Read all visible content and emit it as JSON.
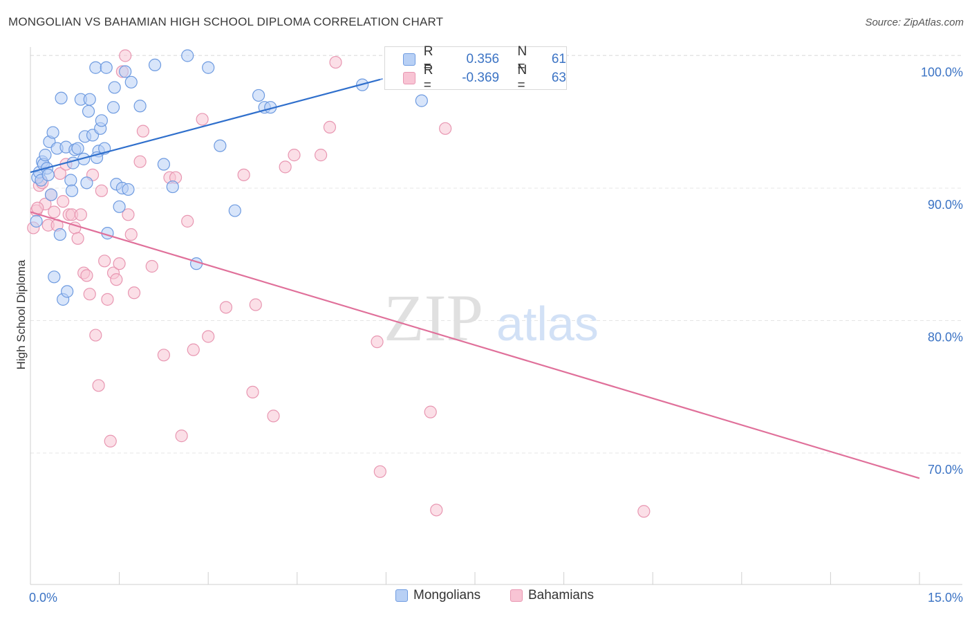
{
  "title": "MONGOLIAN VS BAHAMIAN HIGH SCHOOL DIPLOMA CORRELATION CHART",
  "source": "Source: ZipAtlas.com",
  "watermark": {
    "zip": "ZIP",
    "atlas": "atlas"
  },
  "colors": {
    "mongolians_fill": "#b8d0f5",
    "mongolians_stroke": "#6d9ae0",
    "mongolians_line": "#2f6fcc",
    "bahamians_fill": "#f8c4d4",
    "bahamians_stroke": "#e896b1",
    "bahamians_line": "#e0709a",
    "tick_label": "#3b73c4",
    "grid": "#e4e4e4"
  },
  "stats": {
    "r_label": "R =",
    "n_label": "N =",
    "mongolians": {
      "r": "0.356",
      "n": "61"
    },
    "bahamians": {
      "r": "-0.369",
      "n": "63"
    }
  },
  "chart_data": {
    "type": "scatter",
    "title": "MONGOLIAN VS BAHAMIAN HIGH SCHOOL DIPLOMA CORRELATION CHART",
    "xlabel": "",
    "ylabel": "High School Diploma",
    "xlim": [
      0,
      15
    ],
    "ylim": [
      62,
      101
    ],
    "x_tick_labels": [
      "0.0%",
      "15.0%"
    ],
    "y_ticks": [
      70,
      80,
      90,
      100
    ],
    "y_tick_labels": [
      "70.0%",
      "80.0%",
      "90.0%",
      "100.0%"
    ],
    "grid": true,
    "legend_position": "bottom-center",
    "series": [
      {
        "name": "Mongolians",
        "points": [
          [
            0.12,
            90.8
          ],
          [
            0.15,
            91.2
          ],
          [
            0.18,
            90.6
          ],
          [
            0.2,
            92.0
          ],
          [
            0.22,
            91.8
          ],
          [
            0.25,
            92.5
          ],
          [
            0.28,
            91.5
          ],
          [
            0.32,
            93.5
          ],
          [
            0.35,
            89.5
          ],
          [
            0.38,
            94.2
          ],
          [
            0.45,
            93.0
          ],
          [
            0.5,
            86.5
          ],
          [
            0.55,
            81.6
          ],
          [
            0.6,
            93.1
          ],
          [
            0.62,
            82.2
          ],
          [
            0.68,
            90.6
          ],
          [
            0.7,
            89.8
          ],
          [
            0.72,
            91.9
          ],
          [
            0.75,
            92.9
          ],
          [
            0.8,
            93.0
          ],
          [
            0.85,
            96.7
          ],
          [
            0.9,
            92.2
          ],
          [
            0.92,
            93.9
          ],
          [
            0.95,
            90.4
          ],
          [
            0.98,
            95.8
          ],
          [
            1.0,
            96.7
          ],
          [
            1.05,
            94.0
          ],
          [
            1.1,
            99.1
          ],
          [
            1.15,
            92.8
          ],
          [
            1.18,
            94.5
          ],
          [
            1.2,
            95.1
          ],
          [
            1.25,
            93.0
          ],
          [
            1.28,
            99.1
          ],
          [
            1.3,
            86.6
          ],
          [
            1.4,
            96.1
          ],
          [
            1.42,
            97.6
          ],
          [
            1.45,
            90.3
          ],
          [
            1.5,
            88.6
          ],
          [
            1.55,
            90.0
          ],
          [
            1.6,
            98.8
          ],
          [
            1.65,
            89.9
          ],
          [
            1.7,
            98.0
          ],
          [
            1.85,
            96.2
          ],
          [
            2.1,
            99.3
          ],
          [
            2.25,
            91.8
          ],
          [
            2.4,
            90.1
          ],
          [
            2.65,
            100.0
          ],
          [
            2.8,
            84.3
          ],
          [
            3.0,
            99.1
          ],
          [
            3.2,
            93.2
          ],
          [
            3.45,
            88.3
          ],
          [
            3.85,
            97.0
          ],
          [
            3.95,
            96.1
          ],
          [
            4.05,
            96.1
          ],
          [
            5.6,
            97.8
          ],
          [
            6.6,
            96.6
          ],
          [
            0.52,
            96.8
          ],
          [
            0.1,
            87.5
          ],
          [
            0.4,
            83.3
          ],
          [
            1.12,
            92.3
          ],
          [
            0.3,
            91.0
          ]
        ]
      },
      {
        "name": "Bahamians",
        "points": [
          [
            0.05,
            87.0
          ],
          [
            0.1,
            88.3
          ],
          [
            0.15,
            90.2
          ],
          [
            0.2,
            90.4
          ],
          [
            0.25,
            88.8
          ],
          [
            0.3,
            87.2
          ],
          [
            0.35,
            89.5
          ],
          [
            0.4,
            88.2
          ],
          [
            0.45,
            87.2
          ],
          [
            0.5,
            91.1
          ],
          [
            0.55,
            89.0
          ],
          [
            0.6,
            91.8
          ],
          [
            0.65,
            88.0
          ],
          [
            0.7,
            88.0
          ],
          [
            0.75,
            87.0
          ],
          [
            0.8,
            86.2
          ],
          [
            0.85,
            88.0
          ],
          [
            0.9,
            83.6
          ],
          [
            0.95,
            83.4
          ],
          [
            1.0,
            82.0
          ],
          [
            1.05,
            91.0
          ],
          [
            1.1,
            78.9
          ],
          [
            1.15,
            75.1
          ],
          [
            1.2,
            89.8
          ],
          [
            1.25,
            84.5
          ],
          [
            1.3,
            81.6
          ],
          [
            1.35,
            70.9
          ],
          [
            1.4,
            83.6
          ],
          [
            1.45,
            83.1
          ],
          [
            1.5,
            84.3
          ],
          [
            1.55,
            98.8
          ],
          [
            1.6,
            100.0
          ],
          [
            1.65,
            88.0
          ],
          [
            1.7,
            86.5
          ],
          [
            1.75,
            82.1
          ],
          [
            1.85,
            92.0
          ],
          [
            1.9,
            94.3
          ],
          [
            2.05,
            84.1
          ],
          [
            2.25,
            77.4
          ],
          [
            2.35,
            90.8
          ],
          [
            2.45,
            90.8
          ],
          [
            2.55,
            71.3
          ],
          [
            2.65,
            87.5
          ],
          [
            2.75,
            77.8
          ],
          [
            2.9,
            95.2
          ],
          [
            3.0,
            78.8
          ],
          [
            3.3,
            81.0
          ],
          [
            3.6,
            91.0
          ],
          [
            3.75,
            74.6
          ],
          [
            3.8,
            81.2
          ],
          [
            4.1,
            72.8
          ],
          [
            4.3,
            91.6
          ],
          [
            4.45,
            92.5
          ],
          [
            4.9,
            92.5
          ],
          [
            5.05,
            94.6
          ],
          [
            5.15,
            99.5
          ],
          [
            5.85,
            78.4
          ],
          [
            5.9,
            68.6
          ],
          [
            6.75,
            73.1
          ],
          [
            6.85,
            65.7
          ],
          [
            7.0,
            94.5
          ],
          [
            10.35,
            65.6
          ],
          [
            0.12,
            88.5
          ]
        ]
      }
    ],
    "trendlines": [
      {
        "series": "Mongolians",
        "from": [
          0,
          91.2
        ],
        "to": [
          5.9,
          98.2
        ],
        "dashed_to": [
          7.4,
          100.0
        ]
      },
      {
        "series": "Bahamians",
        "from": [
          0,
          88.2
        ],
        "to": [
          15,
          68.1
        ]
      }
    ]
  },
  "legend": {
    "items": [
      "Mongolians",
      "Bahamians"
    ]
  }
}
